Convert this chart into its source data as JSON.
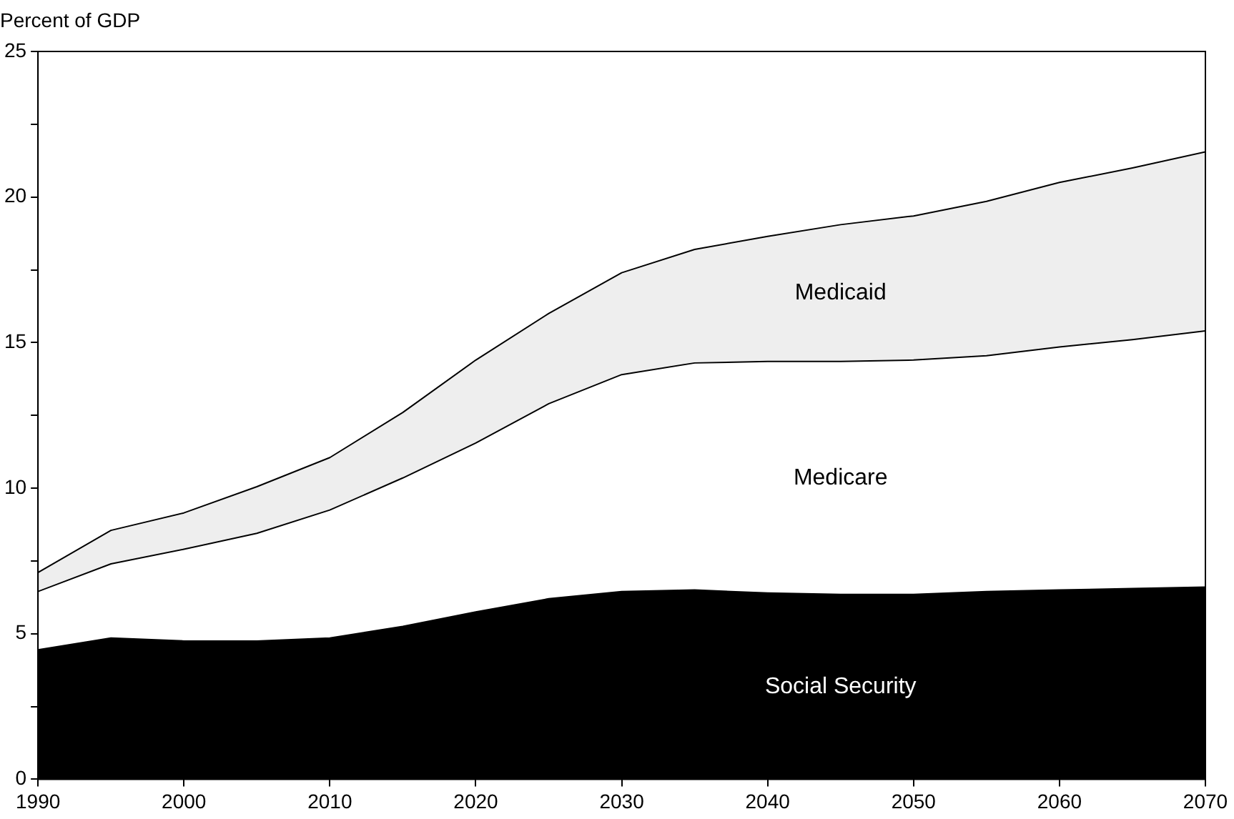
{
  "chart_data": {
    "type": "area",
    "stacked": true,
    "ylabel": "Percent of GDP",
    "x": [
      1990,
      1995,
      2000,
      2005,
      2010,
      2015,
      2020,
      2025,
      2030,
      2035,
      2040,
      2045,
      2050,
      2055,
      2060,
      2065,
      2070
    ],
    "xlim": [
      1990,
      2070
    ],
    "xticks": [
      1990,
      2000,
      2010,
      2020,
      2030,
      2040,
      2050,
      2060,
      2070
    ],
    "ylim": [
      0,
      25
    ],
    "yticks": [
      0,
      {
        "value": 2.5,
        "label": null
      },
      5,
      {
        "value": 7.5,
        "label": null
      },
      10,
      {
        "value": 12.5,
        "label": null
      },
      15,
      {
        "value": 17.5,
        "label": null
      },
      20,
      {
        "value": 22.5,
        "label": null
      },
      25
    ],
    "grid": false,
    "legend": false,
    "series": [
      {
        "name": "Social Security",
        "color": "#000000",
        "values": [
          4.45,
          4.85,
          4.75,
          4.75,
          4.85,
          5.25,
          5.75,
          6.2,
          6.45,
          6.5,
          6.4,
          6.35,
          6.35,
          6.45,
          6.5,
          6.55,
          6.6
        ]
      },
      {
        "name": "Medicare",
        "color": "#ffffff",
        "values": [
          2.0,
          2.55,
          3.15,
          3.7,
          4.4,
          5.1,
          5.8,
          6.7,
          7.45,
          7.8,
          7.95,
          8.0,
          8.05,
          8.1,
          8.35,
          8.55,
          8.8
        ]
      },
      {
        "name": "Medicaid",
        "color": "#eeeeee",
        "values": [
          0.65,
          1.15,
          1.25,
          1.6,
          1.8,
          2.25,
          2.85,
          3.1,
          3.5,
          3.9,
          4.3,
          4.7,
          4.95,
          5.3,
          5.65,
          5.9,
          6.15
        ]
      }
    ]
  }
}
